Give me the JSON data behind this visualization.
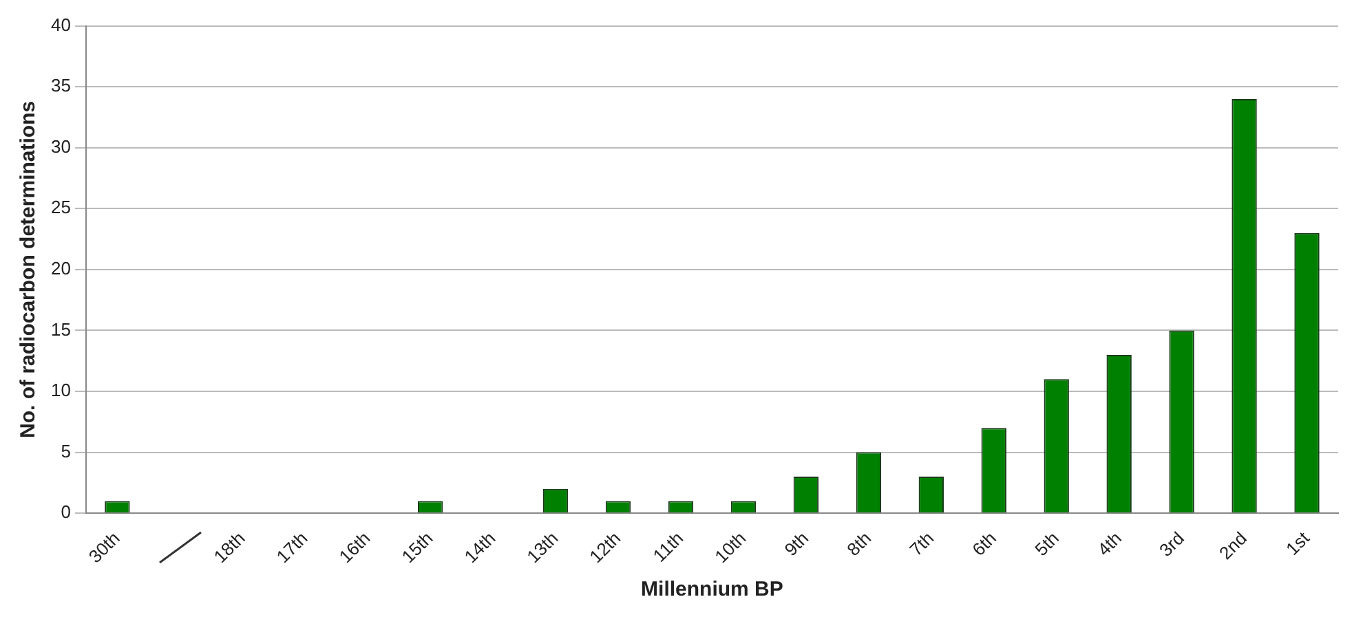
{
  "chart_data": {
    "type": "bar",
    "xlabel": "Millennium BP",
    "ylabel": "No. of radiocarbon determinations",
    "categories": [
      "30th",
      null,
      "18th",
      "17th",
      "16th",
      "15th",
      "14th",
      "13th",
      "12th",
      "11th",
      "10th",
      "9th",
      "8th",
      "7th",
      "6th",
      "5th",
      "4th",
      "3rd",
      "2nd",
      "1st"
    ],
    "values": [
      1,
      0,
      0,
      0,
      0,
      1,
      0,
      2,
      1,
      1,
      1,
      3,
      5,
      3,
      7,
      11,
      13,
      15,
      34,
      23
    ],
    "color": "#008000",
    "ylim": [
      0,
      40
    ],
    "yticks": [
      0,
      5,
      10,
      15,
      20,
      25,
      30,
      35,
      40
    ],
    "grid": "y"
  }
}
